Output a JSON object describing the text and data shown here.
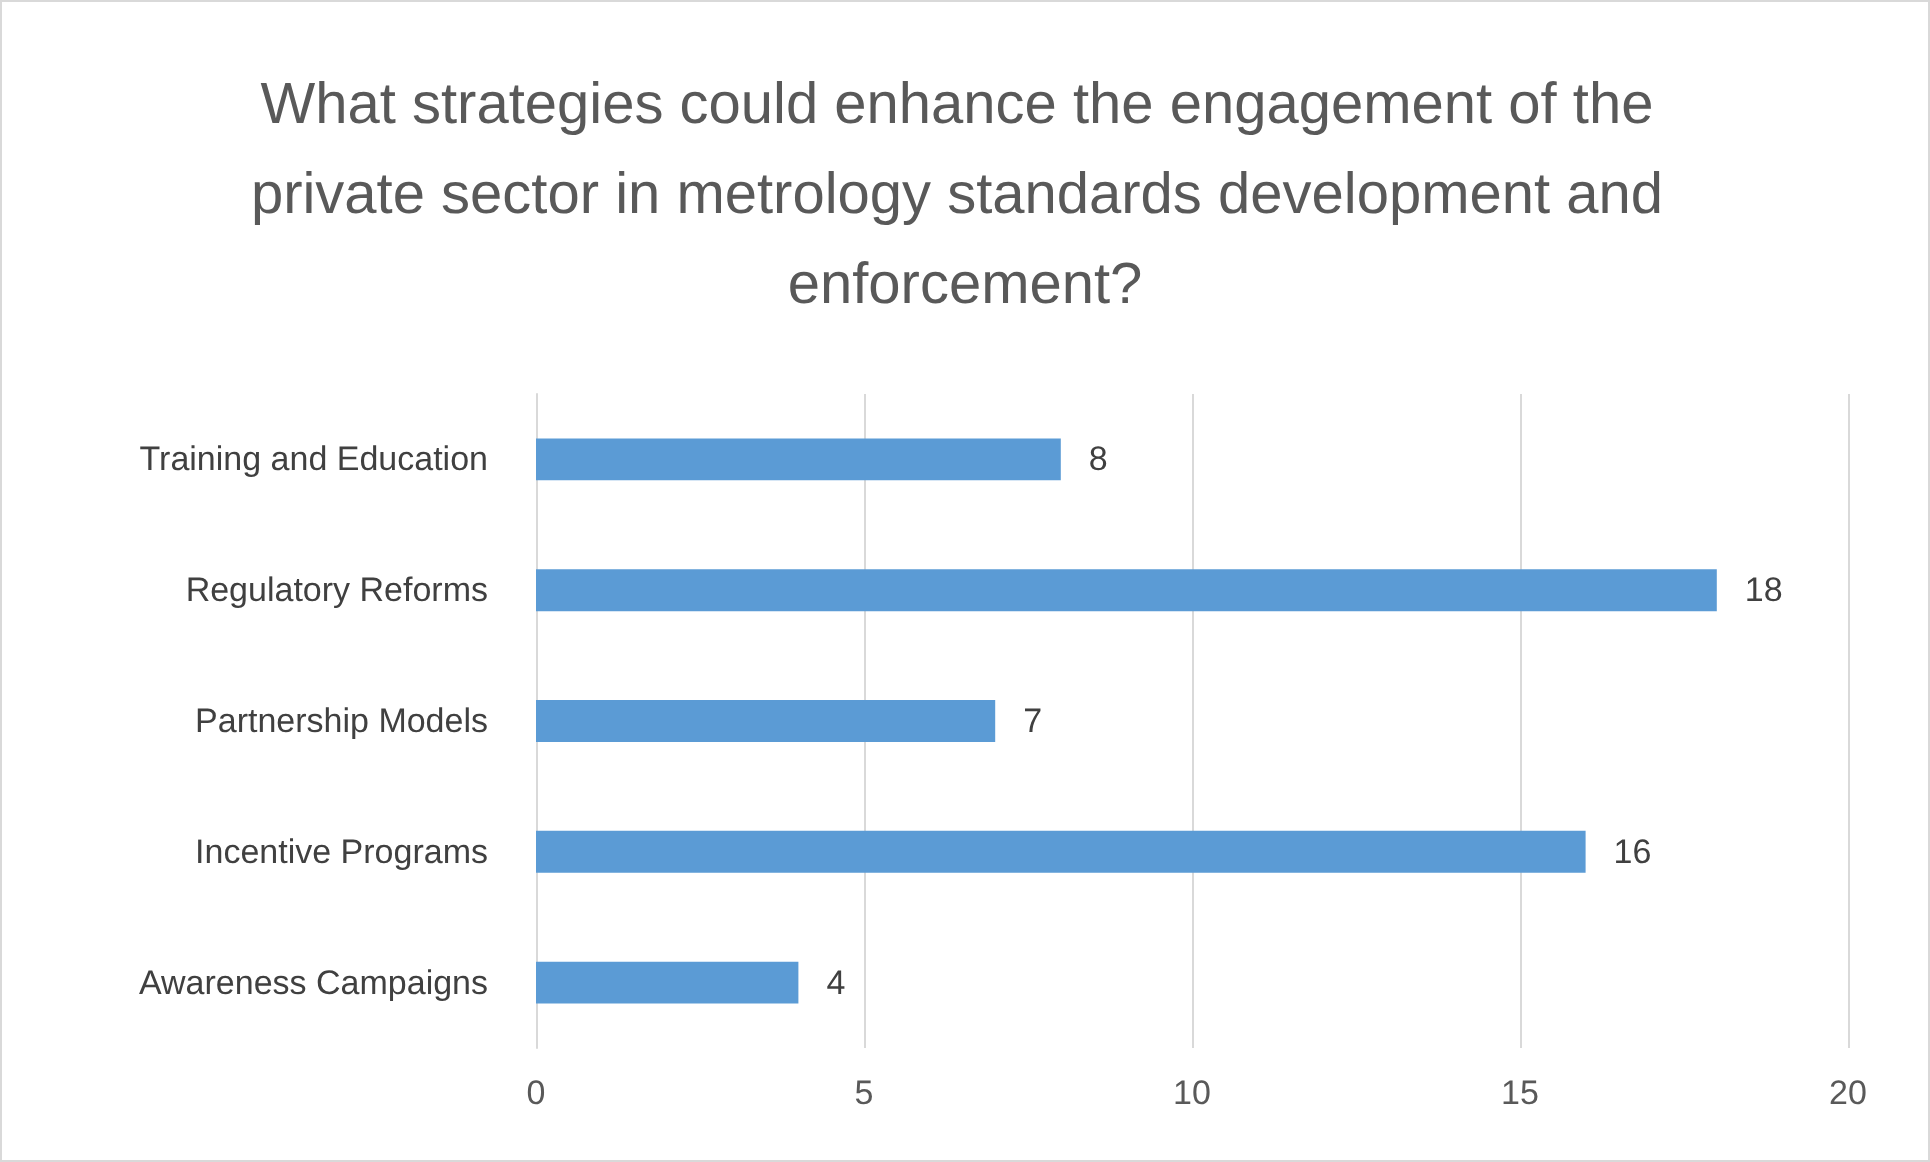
{
  "chart_data": {
    "type": "bar",
    "orientation": "horizontal",
    "title": "What strategies could enhance the engagement of the private sector in metrology standards development and enforcement?",
    "categories": [
      "Training and Education",
      "Regulatory Reforms",
      "Partnership Models",
      "Incentive Programs",
      "Awareness Campaigns"
    ],
    "values": [
      8,
      18,
      7,
      16,
      4
    ],
    "color": "#5b9bd5",
    "xlim": [
      0,
      20
    ],
    "xticks": [
      0,
      5,
      10,
      15,
      20
    ],
    "grid": "x",
    "data_labels": true
  }
}
